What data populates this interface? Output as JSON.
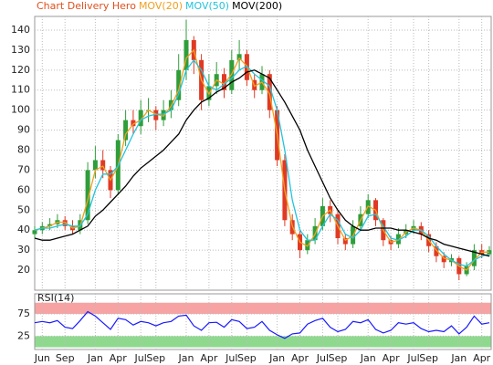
{
  "chart_data": [
    {
      "type": "candlestick",
      "title": "Chart Delivery Hero",
      "title_color": "#e0501e",
      "categories": [
        null,
        "Jun",
        null,
        null,
        "Sep",
        null,
        null,
        null,
        "Jan",
        null,
        null,
        "Apr",
        null,
        null,
        "Jul",
        null,
        "Sep",
        null,
        null,
        null,
        "Jan",
        null,
        null,
        "Apr",
        null,
        null,
        "Jul",
        null,
        "Sep",
        null,
        null,
        null,
        "Jan",
        null,
        null,
        "Apr",
        null,
        null,
        "Jul",
        null,
        "Sep",
        null,
        null,
        null,
        "Jan",
        null,
        null,
        "Apr",
        null,
        null,
        "Jul",
        null,
        "Sep",
        null,
        null,
        null,
        "Jan",
        null,
        null,
        "Apr",
        null
      ],
      "open": [
        38,
        40,
        42,
        43,
        45,
        42,
        40,
        45,
        70,
        75,
        70,
        60,
        85,
        95,
        92,
        100,
        100,
        95,
        100,
        105,
        120,
        135,
        125,
        105,
        112,
        118,
        110,
        125,
        128,
        115,
        110,
        118,
        100,
        75,
        45,
        38,
        30,
        35,
        42,
        52,
        48,
        36,
        33,
        42,
        48,
        55,
        45,
        35,
        33,
        38,
        40,
        42,
        38,
        32,
        27,
        24,
        26,
        18,
        22,
        30,
        28
      ],
      "high": [
        42,
        44,
        46,
        48,
        47,
        45,
        48,
        74,
        82,
        80,
        72,
        88,
        100,
        100,
        105,
        106,
        102,
        105,
        110,
        128,
        145,
        137,
        128,
        118,
        124,
        121,
        130,
        135,
        130,
        118,
        122,
        120,
        102,
        78,
        48,
        40,
        38,
        46,
        56,
        55,
        50,
        38,
        45,
        52,
        58,
        56,
        46,
        37,
        41,
        43,
        45,
        44,
        40,
        34,
        29,
        28,
        27,
        24,
        33,
        33,
        32
      ],
      "low": [
        36,
        38,
        40,
        41,
        40,
        38,
        38,
        43,
        66,
        66,
        56,
        58,
        82,
        88,
        88,
        94,
        90,
        92,
        96,
        102,
        115,
        118,
        100,
        102,
        108,
        106,
        108,
        120,
        112,
        106,
        108,
        96,
        72,
        42,
        35,
        26,
        28,
        33,
        40,
        44,
        33,
        30,
        31,
        40,
        46,
        42,
        32,
        30,
        31,
        36,
        38,
        35,
        29,
        24,
        21,
        22,
        15,
        17,
        20,
        26,
        27
      ],
      "close": [
        40,
        42,
        43,
        45,
        42,
        40,
        45,
        70,
        75,
        70,
        60,
        85,
        95,
        92,
        100,
        100,
        95,
        100,
        105,
        120,
        135,
        125,
        105,
        112,
        118,
        110,
        125,
        128,
        115,
        110,
        118,
        100,
        75,
        45,
        38,
        30,
        35,
        42,
        52,
        48,
        36,
        33,
        42,
        48,
        55,
        45,
        35,
        33,
        38,
        40,
        42,
        38,
        32,
        27,
        24,
        26,
        18,
        22,
        30,
        28,
        30
      ],
      "up_color": "#2f9e3a",
      "down_color": "#e03a24",
      "series": [
        {
          "name": "MOV(20)",
          "color": "#f0a020",
          "values": [
            40,
            41,
            42,
            44,
            44,
            41,
            42,
            55,
            70,
            72,
            65,
            72,
            88,
            93,
            95,
            100,
            98,
            97,
            102,
            110,
            126,
            130,
            115,
            108,
            115,
            113,
            118,
            126,
            122,
            112,
            114,
            108,
            88,
            60,
            42,
            34,
            32,
            38,
            47,
            50,
            42,
            35,
            37,
            45,
            52,
            50,
            40,
            34,
            35,
            39,
            41,
            40,
            35,
            30,
            26,
            25,
            22,
            20,
            25,
            29,
            29
          ]
        },
        {
          "name": "MOV(50)",
          "color": "#22c4dc",
          "values": [
            40,
            41,
            41,
            42,
            43,
            42,
            42,
            48,
            60,
            68,
            68,
            72,
            80,
            88,
            95,
            97,
            98,
            98,
            100,
            108,
            120,
            125,
            120,
            112,
            110,
            113,
            116,
            120,
            122,
            118,
            115,
            112,
            100,
            80,
            55,
            40,
            35,
            35,
            42,
            48,
            45,
            38,
            36,
            40,
            47,
            48,
            42,
            36,
            35,
            37,
            40,
            40,
            37,
            32,
            28,
            25,
            23,
            22,
            25,
            27,
            28
          ]
        },
        {
          "name": "MOV(200)",
          "color": "#000000",
          "values": [
            36,
            35,
            35,
            36,
            37,
            38,
            40,
            42,
            47,
            50,
            54,
            58,
            62,
            67,
            71,
            74,
            77,
            80,
            84,
            88,
            95,
            100,
            104,
            106,
            109,
            111,
            114,
            116,
            119,
            120,
            118,
            116,
            110,
            104,
            97,
            90,
            80,
            72,
            64,
            56,
            50,
            45,
            42,
            40,
            40,
            41,
            41,
            41,
            40,
            40,
            39,
            38,
            36,
            35,
            33,
            32,
            31,
            30,
            29,
            28,
            27
          ]
        }
      ],
      "ylim": [
        10,
        145
      ],
      "yticks": [
        20,
        30,
        40,
        50,
        60,
        70,
        80,
        90,
        100,
        110,
        120,
        130,
        140
      ],
      "grid": true
    },
    {
      "type": "line",
      "title": "RSI(14)",
      "series": [
        {
          "color": "#1a1aff",
          "values": [
            55,
            58,
            55,
            60,
            45,
            42,
            60,
            80,
            70,
            55,
            40,
            65,
            62,
            50,
            58,
            55,
            48,
            55,
            58,
            70,
            72,
            48,
            38,
            55,
            56,
            45,
            62,
            58,
            42,
            45,
            58,
            38,
            28,
            20,
            30,
            32,
            52,
            60,
            65,
            45,
            35,
            40,
            58,
            55,
            62,
            40,
            32,
            38,
            55,
            52,
            55,
            42,
            35,
            38,
            35,
            48,
            30,
            45,
            70,
            52,
            55
          ]
        }
      ],
      "bands": [
        {
          "from": 75,
          "to": 100,
          "color": "#f7a3a3"
        },
        {
          "from": 0,
          "to": 25,
          "color": "#8fd98f"
        }
      ],
      "ylim": [
        -5,
        120
      ],
      "yticks": [
        25,
        75
      ],
      "grid": true
    }
  ]
}
